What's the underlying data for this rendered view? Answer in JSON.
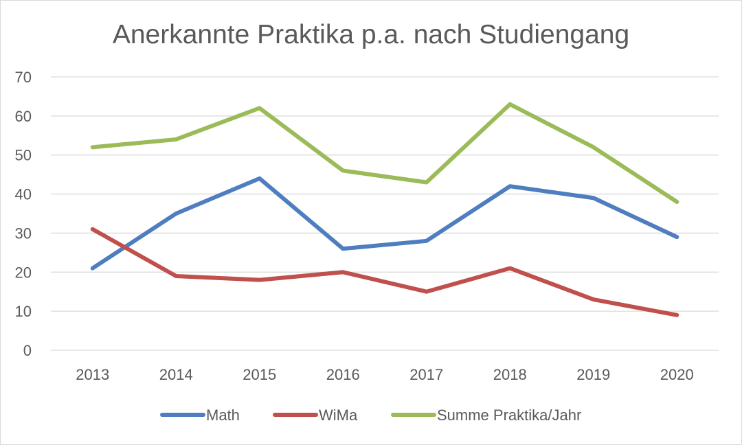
{
  "chart_data": {
    "type": "line",
    "title": "Anerkannte Praktika p.a. nach Studiengang",
    "xlabel": "",
    "ylabel": "",
    "categories": [
      "2013",
      "2014",
      "2015",
      "2016",
      "2017",
      "2018",
      "2019",
      "2020"
    ],
    "ylim": [
      0,
      70
    ],
    "yticks": [
      0,
      10,
      20,
      30,
      40,
      50,
      60,
      70
    ],
    "grid": true,
    "legend_position": "bottom",
    "series": [
      {
        "name": "Math",
        "color": "#4f7ec0",
        "values": [
          21,
          35,
          44,
          26,
          28,
          42,
          39,
          29
        ]
      },
      {
        "name": "WiMa",
        "color": "#c0504d",
        "values": [
          31,
          19,
          18,
          20,
          15,
          21,
          13,
          9
        ]
      },
      {
        "name": "Summe Praktika/Jahr",
        "color": "#9bbb59",
        "values": [
          52,
          54,
          62,
          46,
          43,
          63,
          52,
          38
        ]
      }
    ]
  }
}
